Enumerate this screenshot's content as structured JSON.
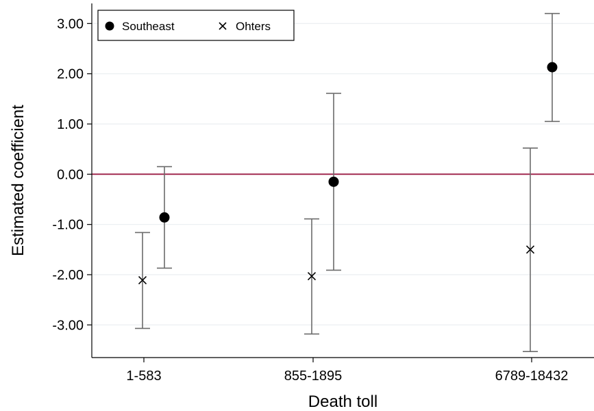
{
  "chart_data": {
    "type": "scatter",
    "title": "",
    "xlabel": "Death toll",
    "ylabel": "Estimated coefficient",
    "categories": [
      "1-583",
      "855-1895",
      "6789-18432"
    ],
    "y_ticks": [
      "-3.00",
      "-2.00",
      "-1.00",
      "0.00",
      "1.00",
      "2.00",
      "3.00"
    ],
    "ylim": [
      -3.65,
      3.4
    ],
    "grid": true,
    "reference_line": {
      "y": 0,
      "color": "#9b1b45"
    },
    "legend_position": "top-left",
    "series": [
      {
        "name": "Southeast",
        "marker": "circle",
        "values": [
          -0.86,
          -0.15,
          2.13
        ],
        "ci_low": [
          -1.87,
          -1.91,
          1.05
        ],
        "ci_high": [
          0.15,
          1.61,
          3.2
        ]
      },
      {
        "name": "Ohters",
        "marker": "x",
        "values": [
          -2.11,
          -2.03,
          -1.5
        ],
        "ci_low": [
          -3.07,
          -3.18,
          -3.53
        ],
        "ci_high": [
          -1.16,
          -0.89,
          0.52
        ]
      }
    ]
  }
}
